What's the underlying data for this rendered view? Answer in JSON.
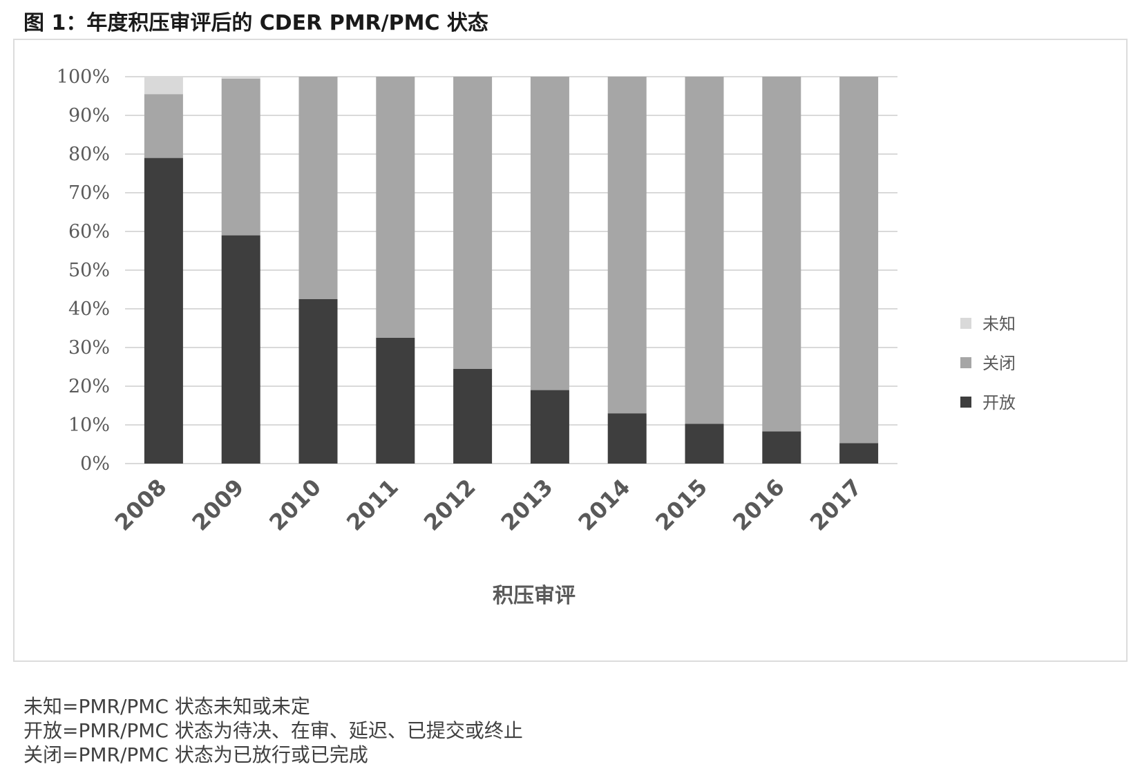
{
  "figure_title": "图 1：年度积压审评后的 CDER PMR/PMC 状态",
  "colors": {
    "unknown": "#d9d9d9",
    "closed": "#a6a6a6",
    "open": "#3e3e3e",
    "grid": "#d9d9d9"
  },
  "chart_data": {
    "type": "bar",
    "stacked": true,
    "title": "",
    "xlabel": "积压审评",
    "ylabel": "",
    "ylim": [
      0,
      100
    ],
    "yticks": [
      "0%",
      "10%",
      "20%",
      "30%",
      "40%",
      "50%",
      "60%",
      "70%",
      "80%",
      "90%",
      "100%"
    ],
    "categories": [
      "2008",
      "2009",
      "2010",
      "2011",
      "2012",
      "2013",
      "2014",
      "2015",
      "2016",
      "2017"
    ],
    "series": [
      {
        "name": "开放",
        "values": [
          79,
          59,
          42.5,
          32.5,
          24.5,
          19,
          13,
          10.3,
          8.3,
          5.3
        ]
      },
      {
        "name": "关闭",
        "values": [
          16.5,
          40.5,
          57.5,
          67.5,
          75.5,
          81,
          87,
          89.7,
          91.7,
          94.7
        ]
      },
      {
        "name": "未知",
        "values": [
          4.5,
          0.5,
          0,
          0,
          0,
          0,
          0,
          0,
          0,
          0
        ]
      }
    ],
    "legend": {
      "position": "right",
      "entries": [
        "未知",
        "关闭",
        "开放"
      ]
    }
  },
  "notes": [
    "未知=PMR/PMC 状态未知或未定",
    "开放=PMR/PMC 状态为待决、在审、延迟、已提交或终止",
    "关闭=PMR/PMC 状态为已放行或已完成"
  ]
}
